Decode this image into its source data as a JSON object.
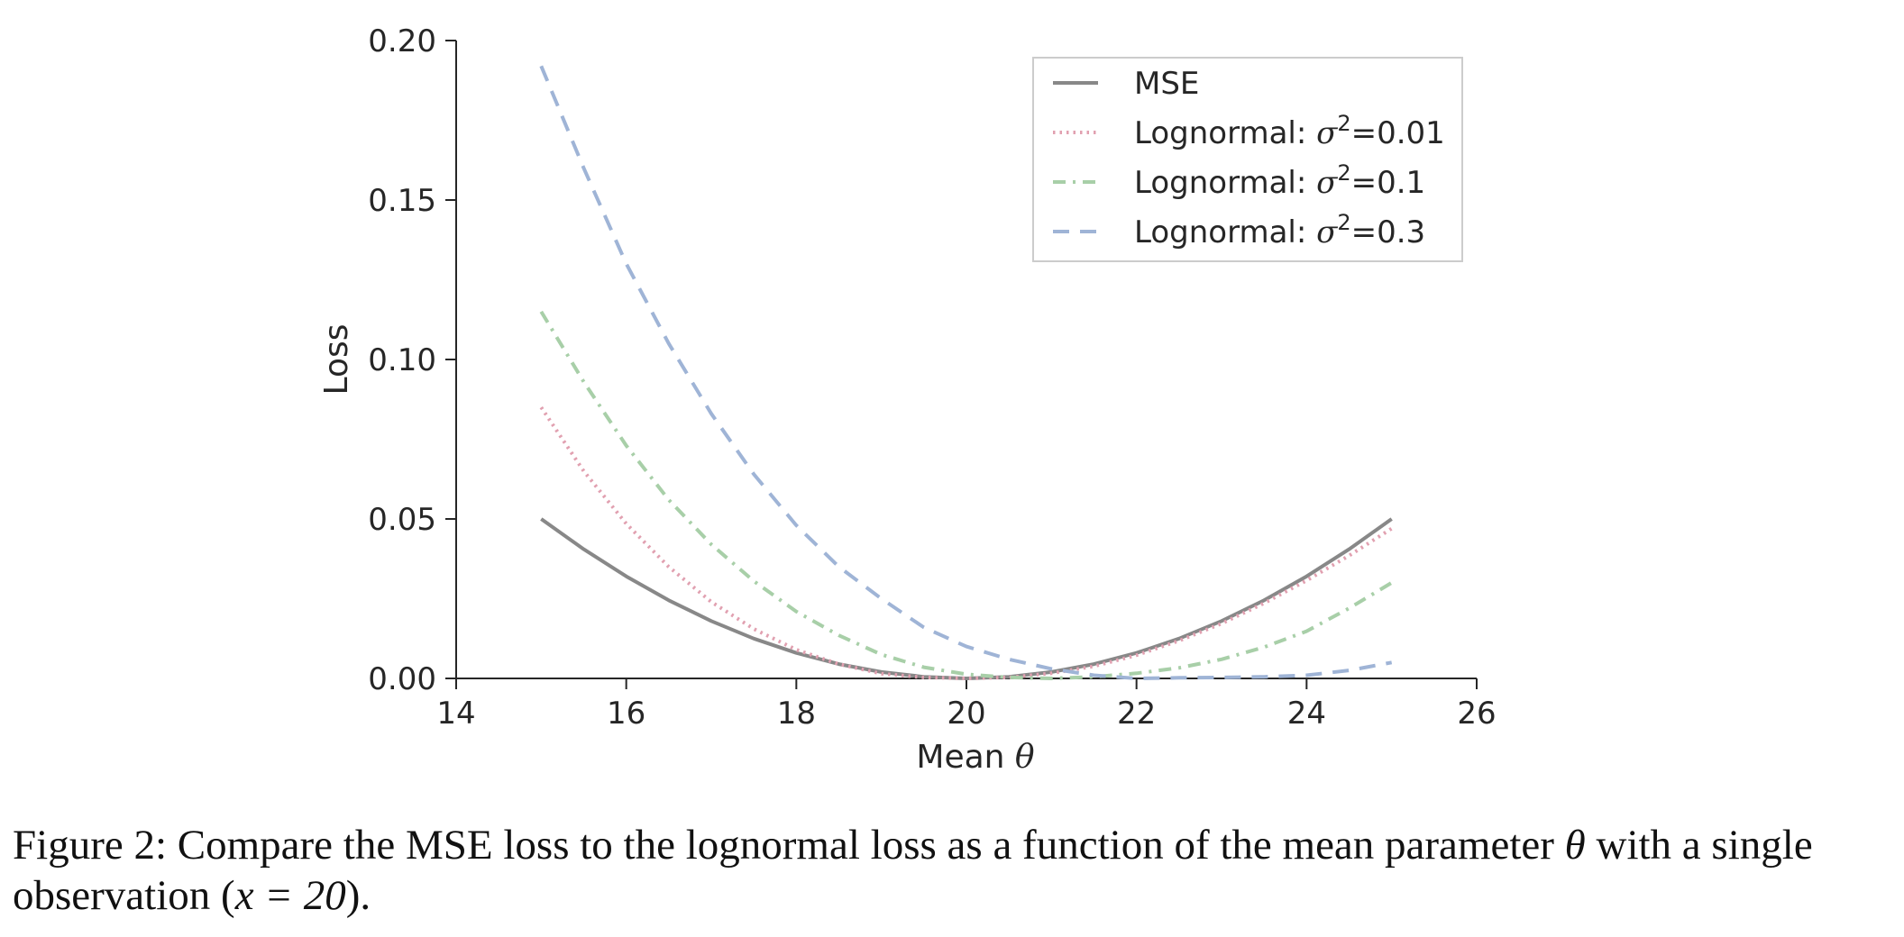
{
  "caption": {
    "prefix": "Figure 2: Compare the MSE loss to the lognormal loss as a function of the mean parameter ",
    "theta": "θ",
    "middle": " with a single observation (",
    "math": "x = 20",
    "suffix": ")."
  },
  "chart_data": {
    "type": "line",
    "xlabel_text": "Mean ",
    "xlabel_math": "θ",
    "ylabel": "Loss",
    "xlim": [
      14,
      26
    ],
    "ylim": [
      0,
      0.2
    ],
    "xticks": [
      14,
      16,
      18,
      20,
      22,
      24,
      26
    ],
    "xtick_labels": [
      "14",
      "16",
      "18",
      "20",
      "22",
      "24",
      "26"
    ],
    "yticks": [
      0,
      0.05,
      0.1,
      0.15,
      0.2
    ],
    "ytick_labels": [
      "0.00",
      "0.05",
      "0.10",
      "0.15",
      "0.20"
    ],
    "grid": false,
    "legend_position": "upper right",
    "series": [
      {
        "name": "MSE",
        "legend_prefix": "MSE",
        "legend_math": "",
        "legend_suffix": "",
        "style": "solid",
        "color": "#888888",
        "x": [
          15,
          15.5,
          16,
          16.5,
          17,
          17.5,
          18,
          18.5,
          19,
          19.5,
          20,
          20.5,
          21,
          21.5,
          22,
          22.5,
          23,
          23.5,
          24,
          24.5,
          25
        ],
        "values": [
          0.05,
          0.0405,
          0.032,
          0.0245,
          0.018,
          0.0125,
          0.008,
          0.0045,
          0.002,
          0.0005,
          0.0,
          0.0005,
          0.002,
          0.0045,
          0.008,
          0.0125,
          0.018,
          0.0245,
          0.032,
          0.0405,
          0.05
        ]
      },
      {
        "name": "Lognormal: σ²=0.01",
        "legend_prefix": "Lognormal: ",
        "legend_math": "σ",
        "legend_suffix": "=0.01",
        "style": "dotted",
        "color": "#e1a0b0",
        "x": [
          15,
          15.5,
          16,
          16.5,
          17,
          17.5,
          18,
          18.5,
          19,
          19.5,
          20,
          20.5,
          21,
          21.5,
          22,
          22.5,
          23,
          23.5,
          24,
          24.5,
          25
        ],
        "values": [
          0.085,
          0.065,
          0.0485,
          0.035,
          0.024,
          0.0155,
          0.009,
          0.0045,
          0.0015,
          0.0003,
          0.0,
          0.0003,
          0.0016,
          0.0038,
          0.0073,
          0.0118,
          0.0172,
          0.0236,
          0.0307,
          0.0385,
          0.047
        ]
      },
      {
        "name": "Lognormal: σ²=0.1",
        "legend_prefix": "Lognormal: ",
        "legend_math": "σ",
        "legend_suffix": "=0.1",
        "style": "dashdot",
        "color": "#a8cfa8",
        "x": [
          15,
          15.5,
          16,
          16.5,
          17,
          17.5,
          18,
          18.5,
          19,
          19.5,
          20,
          20.5,
          21,
          21.5,
          22,
          22.5,
          23,
          23.5,
          24,
          24.5,
          25
        ],
        "values": [
          0.115,
          0.093,
          0.073,
          0.056,
          0.042,
          0.0305,
          0.021,
          0.0135,
          0.0075,
          0.0035,
          0.0013,
          0.0003,
          0.0,
          0.0005,
          0.0016,
          0.0033,
          0.006,
          0.0098,
          0.0148,
          0.022,
          0.03
        ]
      },
      {
        "name": "Lognormal: σ²=0.3",
        "legend_prefix": "Lognormal: ",
        "legend_math": "σ",
        "legend_suffix": "=0.3",
        "style": "dashed",
        "color": "#9fb4d6",
        "x": [
          15,
          15.5,
          16,
          16.5,
          17,
          17.5,
          18,
          18.5,
          19,
          19.5,
          20,
          20.5,
          21,
          21.5,
          22,
          22.5,
          23,
          23.5,
          24,
          24.5,
          25
        ],
        "values": [
          0.192,
          0.16,
          0.13,
          0.105,
          0.083,
          0.064,
          0.048,
          0.035,
          0.025,
          0.016,
          0.01,
          0.006,
          0.003,
          0.001,
          0.0,
          0.0002,
          0.0003,
          0.0005,
          0.001,
          0.0025,
          0.005
        ]
      }
    ]
  }
}
